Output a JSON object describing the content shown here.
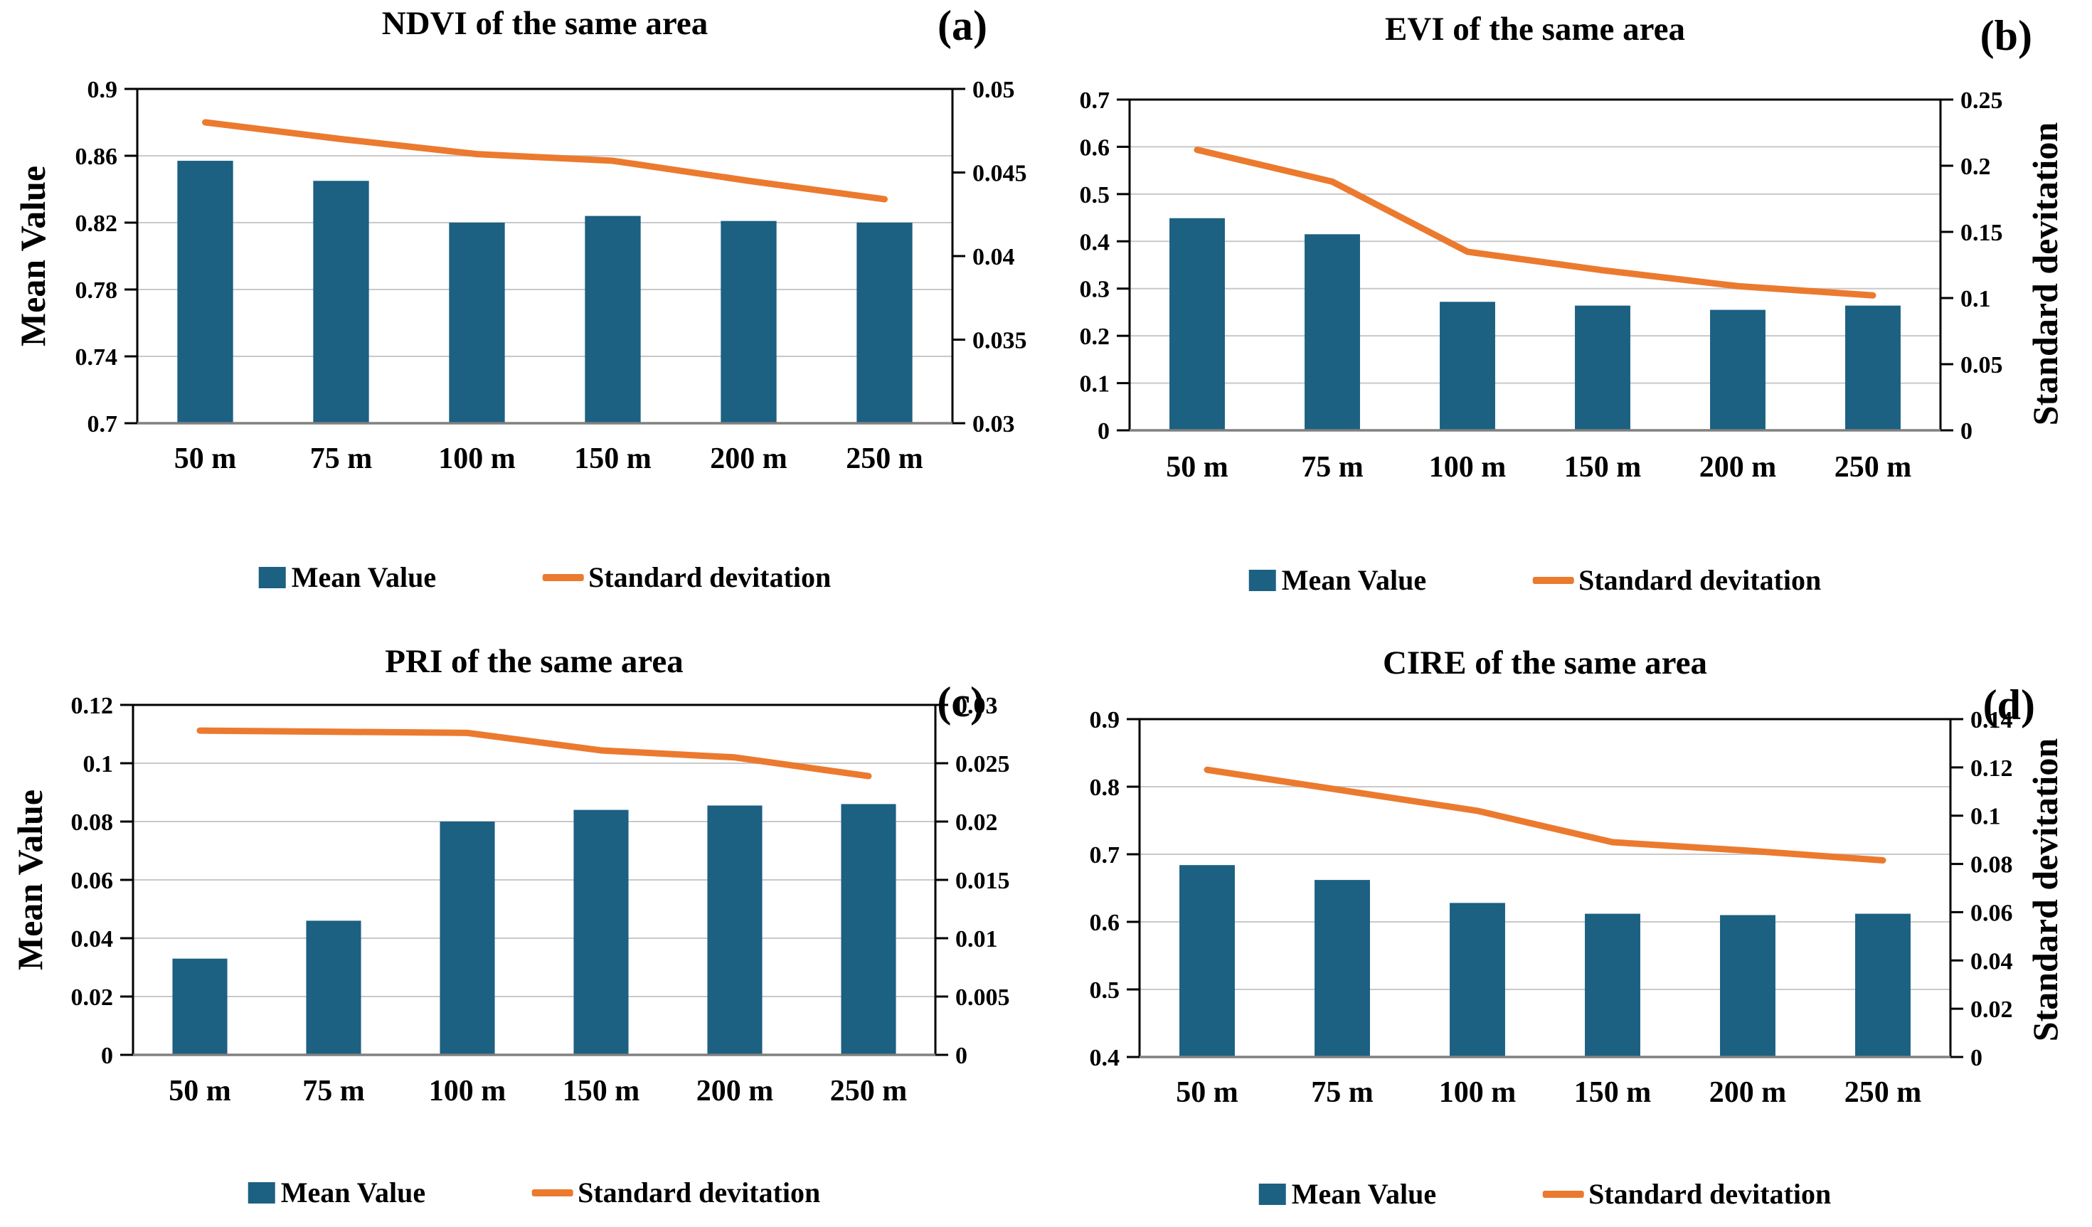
{
  "colors": {
    "bar": "#1C6082",
    "line": "#EB7A2F",
    "grid": "#C9C9C9",
    "axis": "#000000",
    "baseline": "#808080",
    "text": "#000000",
    "background": "#FFFFFF"
  },
  "chart_data": [
    {
      "type": "bar+line",
      "panel_label": "(a)",
      "title": "NDVI of the same area",
      "categories": [
        "50 m",
        "75 m",
        "100 m",
        "150 m",
        "200 m",
        "250 m"
      ],
      "series": [
        {
          "name": "Mean Value",
          "type": "bar",
          "axis": "left",
          "values": [
            0.857,
            0.845,
            0.82,
            0.824,
            0.821,
            0.82
          ]
        },
        {
          "name": "Standard devitation",
          "type": "line",
          "axis": "right",
          "values": [
            0.048,
            0.047,
            0.0461,
            0.0457,
            0.0445,
            0.0434
          ]
        }
      ],
      "left_axis": {
        "title": "Mean Value",
        "min": 0.7,
        "max": 0.9,
        "ticks": [
          "0.9",
          "0.86",
          "0.82",
          "0.78",
          "0.74",
          "0.7"
        ]
      },
      "right_axis": {
        "title": "",
        "min": 0.03,
        "max": 0.05,
        "ticks": [
          "0.05",
          "0.045",
          "0.04",
          "0.035",
          "0.03"
        ]
      },
      "legend": [
        "Mean Value",
        "Standard devitation"
      ],
      "legend_position": "bottom",
      "grid": true
    },
    {
      "type": "bar+line",
      "panel_label": "(b)",
      "title": "EVI of the same area",
      "categories": [
        "50 m",
        "75 m",
        "100 m",
        "150 m",
        "200 m",
        "250 m"
      ],
      "series": [
        {
          "name": "Mean Value",
          "type": "bar",
          "axis": "left",
          "values": [
            0.449,
            0.415,
            0.272,
            0.264,
            0.255,
            0.264
          ]
        },
        {
          "name": "Standard devitation",
          "type": "line",
          "axis": "right",
          "values": [
            0.212,
            0.188,
            0.135,
            0.121,
            0.109,
            0.102
          ]
        }
      ],
      "left_axis": {
        "title": "",
        "min": 0,
        "max": 0.7,
        "ticks": [
          "0.7",
          "0.6",
          "0.5",
          "0.4",
          "0.3",
          "0.2",
          "0.1",
          "0"
        ]
      },
      "right_axis": {
        "title": "Standard devitation",
        "min": 0,
        "max": 0.25,
        "ticks": [
          "0.25",
          "0.2",
          "0.15",
          "0.1",
          "0.05",
          "0"
        ]
      },
      "legend": [
        "Mean Value",
        "Standard devitation"
      ],
      "legend_position": "bottom",
      "grid": true
    },
    {
      "type": "bar+line",
      "panel_label": "(c)",
      "title": "PRI of the same area",
      "categories": [
        "50 m",
        "75 m",
        "100 m",
        "150 m",
        "200 m",
        "250 m"
      ],
      "series": [
        {
          "name": "Mean Value",
          "type": "bar",
          "axis": "left",
          "values": [
            0.033,
            0.046,
            0.08,
            0.084,
            0.0855,
            0.086
          ]
        },
        {
          "name": "Standard devitation",
          "type": "line",
          "axis": "right",
          "values": [
            0.0278,
            0.0277,
            0.0276,
            0.0261,
            0.0255,
            0.0239
          ]
        }
      ],
      "left_axis": {
        "title": "Mean Value",
        "min": 0,
        "max": 0.12,
        "ticks": [
          "0.12",
          "0.1",
          "0.08",
          "0.06",
          "0.04",
          "0.02",
          "0"
        ]
      },
      "right_axis": {
        "title": "",
        "min": 0,
        "max": 0.03,
        "ticks": [
          "0.03",
          "0.025",
          "0.02",
          "0.015",
          "0.01",
          "0.005",
          "0"
        ]
      },
      "legend": [
        "Mean Value",
        "Standard devitation"
      ],
      "legend_position": "bottom",
      "grid": true
    },
    {
      "type": "bar+line",
      "panel_label": "(d)",
      "title": "CIRE of the same area",
      "categories": [
        "50 m",
        "75 m",
        "100 m",
        "150 m",
        "200 m",
        "250 m"
      ],
      "series": [
        {
          "name": "Mean Value",
          "type": "bar",
          "axis": "left",
          "values": [
            0.684,
            0.662,
            0.628,
            0.612,
            0.61,
            0.612
          ]
        },
        {
          "name": "Standard devitation",
          "type": "line",
          "axis": "right",
          "values": [
            0.119,
            0.1105,
            0.102,
            0.089,
            0.0855,
            0.0815
          ]
        }
      ],
      "left_axis": {
        "title": "",
        "min": 0.4,
        "max": 0.9,
        "ticks": [
          "0.9",
          "0.8",
          "0.7",
          "0.6",
          "0.5",
          "0.4"
        ]
      },
      "right_axis": {
        "title": "Standard devitation",
        "min": 0,
        "max": 0.14,
        "ticks": [
          "0.14",
          "0.12",
          "0.1",
          "0.08",
          "0.06",
          "0.04",
          "0.02",
          "0"
        ]
      },
      "legend": [
        "Mean Value",
        "Standard devitation"
      ],
      "legend_position": "bottom",
      "grid": true
    }
  ]
}
